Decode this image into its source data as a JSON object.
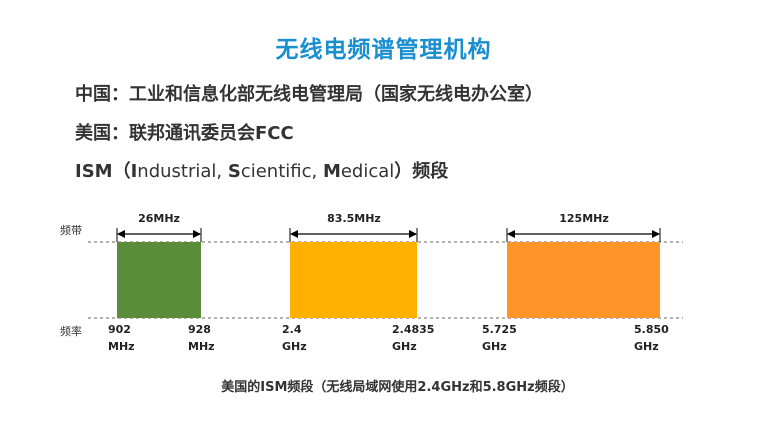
{
  "title": "无线电频谱管理机构",
  "bullets": {
    "china": "中国：工业和信息化部无线电管理局（国家无线电办公室）",
    "usa": "美国：联邦通讯委员会FCC",
    "ism": {
      "prefix": "ISM（",
      "i_letter": "I",
      "i_rest": "ndustrial, ",
      "s_letter": "S",
      "s_rest": "cientific, ",
      "m_letter": "M",
      "m_rest": "edical",
      "suffix": "）频段"
    }
  },
  "diagram": {
    "band_axis_label": "频带",
    "freq_axis_label": "频率",
    "bands": [
      {
        "width_label": "26MHz",
        "color": "#5b8c3a",
        "start_value": "902",
        "start_unit": "MHz",
        "end_value": "928",
        "end_unit": "MHz"
      },
      {
        "width_label": "83.5MHz",
        "color": "#ffb000",
        "start_value": "2.4",
        "start_unit": "GHz",
        "end_value": "2.4835",
        "end_unit": "GHz"
      },
      {
        "width_label": "125MHz",
        "color": "#ff9428",
        "start_value": "5.725",
        "start_unit": "GHz",
        "end_value": "5.850",
        "end_unit": "GHz"
      }
    ]
  },
  "caption": "美国的ISM频段（无线局域网使用2.4GHz和5.8GHz频段）"
}
